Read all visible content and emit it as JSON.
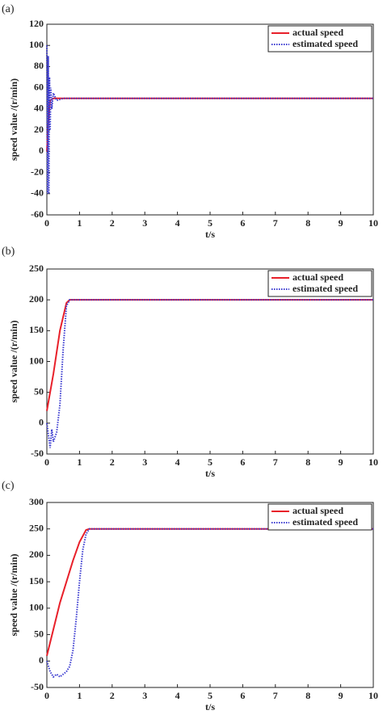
{
  "chart_data": [
    {
      "type": "line",
      "label": "(a)",
      "xlabel": "t/s",
      "ylabel": "speed value /(r/min)",
      "xlim": [
        0,
        10
      ],
      "ylim": [
        -60,
        120
      ],
      "xticks": [
        0,
        1,
        2,
        3,
        4,
        5,
        6,
        7,
        8,
        9,
        10
      ],
      "yticks": [
        -60,
        -40,
        -20,
        0,
        20,
        40,
        60,
        80,
        100,
        120
      ],
      "legend": "upper right",
      "series": [
        {
          "name": "actual speed",
          "color": "#e8202a",
          "style": "solid",
          "x": [
            0,
            0.05,
            0.1,
            0.2,
            10
          ],
          "values": [
            0,
            30,
            48,
            50,
            50
          ]
        },
        {
          "name": "estimated speed",
          "color": "#3a3ad0",
          "style": "dotted",
          "x": [
            0,
            0.02,
            0.04,
            0.06,
            0.08,
            0.1,
            0.12,
            0.15,
            0.2,
            0.3,
            0.5,
            10
          ],
          "values": [
            100,
            -40,
            90,
            -40,
            70,
            20,
            60,
            40,
            55,
            48,
            50,
            50
          ]
        }
      ]
    },
    {
      "type": "line",
      "label": "(b)",
      "xlabel": "t/s",
      "ylabel": "speed value /(r/min)",
      "xlim": [
        0,
        10
      ],
      "ylim": [
        -50,
        250
      ],
      "xticks": [
        0,
        1,
        2,
        3,
        4,
        5,
        6,
        7,
        8,
        9,
        10
      ],
      "yticks": [
        -50,
        0,
        50,
        100,
        150,
        200,
        250
      ],
      "legend": "upper right",
      "series": [
        {
          "name": "actual speed",
          "color": "#e8202a",
          "style": "solid",
          "x": [
            0,
            0.2,
            0.4,
            0.6,
            0.7,
            10
          ],
          "values": [
            20,
            80,
            150,
            195,
            200,
            200
          ]
        },
        {
          "name": "estimated speed",
          "color": "#3a3ad0",
          "style": "dotted",
          "x": [
            0,
            0.05,
            0.1,
            0.15,
            0.2,
            0.3,
            0.4,
            0.5,
            0.6,
            0.7,
            0.8,
            10
          ],
          "values": [
            0,
            -20,
            -40,
            -10,
            -30,
            -15,
            30,
            120,
            190,
            200,
            200,
            200
          ]
        }
      ]
    },
    {
      "type": "line",
      "label": "(c)",
      "xlabel": "t/s",
      "ylabel": "speed value /(r/min)",
      "xlim": [
        0,
        10
      ],
      "ylim": [
        -50,
        300
      ],
      "xticks": [
        0,
        1,
        2,
        3,
        4,
        5,
        6,
        7,
        8,
        9,
        10
      ],
      "yticks": [
        -50,
        0,
        50,
        100,
        150,
        200,
        250,
        300
      ],
      "legend": "upper right",
      "series": [
        {
          "name": "actual speed",
          "color": "#e8202a",
          "style": "solid",
          "x": [
            0,
            0.2,
            0.4,
            0.6,
            0.8,
            1.0,
            1.2,
            1.3,
            10
          ],
          "values": [
            10,
            60,
            110,
            150,
            190,
            225,
            248,
            250,
            250
          ]
        },
        {
          "name": "estimated speed",
          "color": "#3a3ad0",
          "style": "dotted",
          "x": [
            0,
            0.1,
            0.2,
            0.3,
            0.4,
            0.5,
            0.6,
            0.7,
            0.8,
            0.9,
            1.0,
            1.1,
            1.2,
            1.3,
            1.5,
            10
          ],
          "values": [
            0,
            -20,
            -30,
            -25,
            -30,
            -25,
            -20,
            -10,
            20,
            80,
            150,
            210,
            240,
            250,
            250,
            250
          ]
        }
      ]
    }
  ]
}
